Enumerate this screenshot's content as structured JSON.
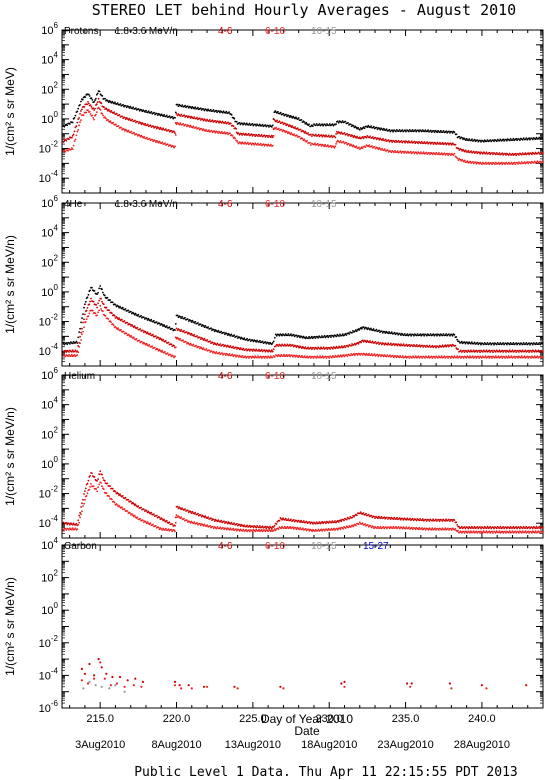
{
  "title": "STEREO LET behind Hourly Averages - August 2010",
  "footer": "Public Level 1 Data. Thu Apr 11 22:15:55 PDT 2013",
  "xlabel": "Day of Year 2010",
  "xlabel2": "Date",
  "xlim": [
    212.5,
    244.0
  ],
  "x_ticks": [
    215.0,
    220.0,
    225.0,
    230.0,
    235.0,
    240.0
  ],
  "x_tick_labels": [
    "215.0",
    "220.0",
    "225.0",
    "230.0",
    "235.0",
    "240.0"
  ],
  "date_labels": [
    {
      "day": 215,
      "label": "3Aug2010"
    },
    {
      "day": 220,
      "label": "8Aug2010"
    },
    {
      "day": 225,
      "label": "13Aug2010"
    },
    {
      "day": 230,
      "label": "18Aug2010"
    },
    {
      "day": 235,
      "label": "23Aug2010"
    },
    {
      "day": 240,
      "label": "28Aug2010"
    }
  ],
  "colors": {
    "1.8-3.6": "#000000",
    "4-6": "#cc0000",
    "6-10": "#ee2222",
    "10-15": "#999999",
    "15-27": "#0000cc"
  },
  "chart_data": [
    {
      "type": "scatter",
      "species": "Protons",
      "ylabel": "1/(cm² s sr MeV)",
      "yscale": "log",
      "ylim": [
        -5,
        6
      ],
      "y_ticks": [
        -4,
        -2,
        0,
        2,
        4,
        6
      ],
      "legend": [
        "1.8-3.6 MeV/n",
        "4-6",
        "6-10",
        "10-15"
      ],
      "series": [
        {
          "name": "1.8-3.6 MeV/n",
          "color": "#000000",
          "x": [
            212.6,
            213.2,
            213.8,
            214.2,
            214.6,
            214.9,
            215.2,
            215.5,
            216.5,
            218.0,
            219.9,
            220.0,
            220.5,
            222.0,
            223.5,
            223.9,
            224.0,
            226.3,
            226.4,
            227.0,
            228.0,
            228.8,
            229.0,
            230.4,
            230.5,
            231.0,
            232.0,
            232.5,
            234.0,
            236.0,
            238.2,
            238.4,
            239.0,
            240.0,
            242.0,
            244.0
          ],
          "y": [
            -0.5,
            -0.2,
            1.3,
            1.7,
            1.1,
            1.9,
            1.4,
            1.2,
            0.9,
            0.5,
            0.05,
            0.95,
            0.85,
            0.6,
            0.4,
            -0.2,
            -0.3,
            -0.5,
            0.5,
            0.3,
            0.0,
            -0.5,
            -0.4,
            -0.4,
            -0.2,
            -0.2,
            -0.7,
            -0.5,
            -0.8,
            -0.8,
            -0.9,
            -1.2,
            -1.4,
            -1.5,
            -1.4,
            -1.3
          ]
        },
        {
          "name": "4-6",
          "color": "#cc0000",
          "x": [
            212.6,
            213.2,
            213.8,
            214.2,
            214.6,
            214.9,
            215.2,
            215.5,
            216.5,
            218.0,
            219.9,
            220.0,
            220.5,
            222.0,
            223.5,
            223.9,
            224.0,
            226.3,
            226.4,
            227.0,
            228.0,
            228.8,
            229.0,
            230.4,
            230.5,
            231.0,
            232.0,
            232.5,
            234.0,
            236.0,
            238.2,
            238.4,
            239.0,
            240.0,
            242.0,
            244.0
          ],
          "y": [
            -1.5,
            -1.2,
            0.7,
            1.1,
            0.6,
            1.3,
            0.8,
            0.6,
            0.1,
            -0.4,
            -0.9,
            0.3,
            0.2,
            -0.1,
            -0.3,
            -0.7,
            -1.0,
            -1.2,
            -0.1,
            -0.3,
            -0.7,
            -1.1,
            -1.1,
            -1.2,
            -0.9,
            -1.0,
            -1.3,
            -1.2,
            -1.5,
            -1.6,
            -1.7,
            -2.0,
            -2.2,
            -2.3,
            -2.4,
            -2.3
          ]
        },
        {
          "name": "6-10",
          "color": "#ee2222",
          "x": [
            212.6,
            213.2,
            213.8,
            214.2,
            214.6,
            214.9,
            215.2,
            215.5,
            216.5,
            218.0,
            219.9,
            220.0,
            220.5,
            222.0,
            223.5,
            223.9,
            224.0,
            226.3,
            226.4,
            227.0,
            228.0,
            228.8,
            229.0,
            230.4,
            230.5,
            231.0,
            232.0,
            232.5,
            234.0,
            236.0,
            238.2,
            238.4,
            239.0,
            240.0,
            242.0,
            244.0
          ],
          "y": [
            -2.2,
            -2.0,
            0.2,
            0.6,
            0.0,
            0.8,
            0.2,
            -0.1,
            -0.7,
            -1.3,
            -1.9,
            -0.3,
            -0.4,
            -0.8,
            -1.0,
            -1.4,
            -1.6,
            -1.8,
            -0.6,
            -0.8,
            -1.2,
            -1.7,
            -1.7,
            -1.9,
            -1.5,
            -1.6,
            -2.0,
            -1.8,
            -2.2,
            -2.3,
            -2.4,
            -2.7,
            -2.9,
            -3.0,
            -3.0,
            -2.9
          ]
        }
      ]
    },
    {
      "type": "scatter",
      "species": "4He",
      "ylabel": "1/(cm² s sr MeV/n)",
      "yscale": "log",
      "ylim": [
        -5,
        6
      ],
      "y_ticks": [
        -4,
        -2,
        0,
        2,
        4,
        6
      ],
      "legend": [
        "1.8-3.6 MeV/n",
        "4-6",
        "6-10",
        "10-15"
      ],
      "series": [
        {
          "name": "1.8-3.6 MeV/n",
          "color": "#000000",
          "x": [
            212.6,
            213.5,
            214.0,
            214.4,
            214.8,
            215.0,
            215.3,
            216.0,
            217.5,
            219.0,
            219.9,
            220.0,
            220.8,
            222.5,
            224.5,
            226.3,
            226.5,
            227.5,
            228.5,
            230.0,
            231.0,
            231.8,
            232.2,
            233.5,
            235.0,
            237.0,
            238.2,
            238.5,
            240.0,
            242.0,
            244.0
          ],
          "y": [
            -3.5,
            -3.4,
            -0.8,
            0.3,
            -0.2,
            0.4,
            -0.3,
            -0.9,
            -1.6,
            -2.2,
            -2.6,
            -1.6,
            -1.9,
            -2.6,
            -3.2,
            -3.5,
            -2.9,
            -2.9,
            -3.1,
            -3.0,
            -2.9,
            -2.6,
            -2.4,
            -2.7,
            -2.9,
            -2.9,
            -2.9,
            -3.4,
            -3.5,
            -3.5,
            -3.5
          ]
        },
        {
          "name": "4-6",
          "color": "#cc0000",
          "x": [
            212.6,
            213.5,
            214.0,
            214.4,
            214.8,
            215.0,
            215.3,
            216.0,
            217.5,
            219.0,
            219.9,
            220.0,
            220.8,
            222.5,
            224.5,
            226.3,
            226.5,
            227.5,
            228.5,
            230.0,
            231.0,
            231.8,
            232.2,
            233.5,
            235.0,
            237.0,
            238.2,
            238.5,
            240.0,
            242.0,
            244.0
          ],
          "y": [
            -4.0,
            -4.0,
            -1.5,
            -0.5,
            -1.0,
            -0.4,
            -1.0,
            -1.7,
            -2.5,
            -3.2,
            -3.7,
            -2.5,
            -2.8,
            -3.5,
            -3.9,
            -4.0,
            -3.6,
            -3.6,
            -3.8,
            -3.8,
            -3.7,
            -3.5,
            -3.3,
            -3.5,
            -3.6,
            -3.7,
            -3.6,
            -4.0,
            -4.0,
            -4.0,
            -4.0
          ]
        },
        {
          "name": "6-10",
          "color": "#ee2222",
          "x": [
            212.6,
            213.5,
            214.0,
            214.4,
            214.8,
            215.0,
            215.3,
            216.0,
            217.5,
            219.0,
            219.9,
            220.0,
            220.8,
            222.5,
            224.5,
            226.3,
            226.5,
            227.5,
            228.5,
            230.0,
            231.0,
            231.8,
            232.2,
            233.5,
            235.0,
            237.0,
            238.2,
            238.5,
            240.0,
            242.0,
            244.0
          ],
          "y": [
            -4.3,
            -4.3,
            -2.1,
            -1.2,
            -1.6,
            -1.0,
            -1.6,
            -2.4,
            -3.3,
            -4.0,
            -4.4,
            -3.1,
            -3.5,
            -4.1,
            -4.4,
            -4.4,
            -4.3,
            -4.3,
            -4.4,
            -4.4,
            -4.3,
            -4.2,
            -4.2,
            -4.3,
            -4.4,
            -4.4,
            -4.4,
            -4.4,
            -4.4,
            -4.4,
            -4.4
          ]
        }
      ]
    },
    {
      "type": "scatter",
      "species": "Helium",
      "ylabel": "1/(cm² s sr MeV/n)",
      "yscale": "log",
      "ylim": [
        -5,
        6
      ],
      "y_ticks": [
        -4,
        -2,
        0,
        2,
        4,
        6
      ],
      "legend": [
        "4-6",
        "6-10",
        "10-15"
      ],
      "series": [
        {
          "name": "4-6",
          "color": "#cc0000",
          "x": [
            212.6,
            213.5,
            214.0,
            214.4,
            214.8,
            215.0,
            215.3,
            216.0,
            217.5,
            219.0,
            219.9,
            220.0,
            220.8,
            222.5,
            224.5,
            226.3,
            226.8,
            227.5,
            229.0,
            230.5,
            231.5,
            232.0,
            233.0,
            234.5,
            236.5,
            238.2,
            238.5,
            240.0,
            242.0,
            244.0
          ],
          "y": [
            -4.0,
            -4.1,
            -1.8,
            -0.6,
            -1.2,
            -0.5,
            -1.2,
            -1.9,
            -2.9,
            -3.7,
            -4.2,
            -2.9,
            -3.2,
            -3.8,
            -4.2,
            -4.3,
            -3.7,
            -3.8,
            -4.0,
            -3.9,
            -3.6,
            -3.3,
            -3.6,
            -3.7,
            -3.8,
            -3.8,
            -4.3,
            -4.3,
            -4.3,
            -4.3
          ]
        },
        {
          "name": "6-10",
          "color": "#ee2222",
          "x": [
            212.6,
            213.5,
            214.0,
            214.4,
            214.8,
            215.0,
            215.3,
            216.0,
            217.5,
            219.0,
            219.9,
            220.0,
            220.8,
            222.5,
            224.5,
            226.3,
            226.8,
            227.5,
            229.0,
            230.5,
            231.5,
            232.0,
            233.0,
            234.5,
            236.5,
            238.2,
            238.5,
            240.0,
            242.0,
            244.0
          ],
          "y": [
            -4.4,
            -4.4,
            -2.4,
            -1.4,
            -1.8,
            -1.2,
            -1.9,
            -2.7,
            -3.7,
            -4.4,
            -4.5,
            -3.5,
            -3.9,
            -4.3,
            -4.5,
            -4.5,
            -4.3,
            -4.3,
            -4.5,
            -4.4,
            -4.2,
            -4.0,
            -4.3,
            -4.3,
            -4.4,
            -4.4,
            -4.6,
            -4.6,
            -4.6,
            -4.6
          ]
        }
      ]
    },
    {
      "type": "scatter",
      "species": "Carbon",
      "ylabel": "1/(cm² s sr MeV/n)",
      "yscale": "log",
      "ylim": [
        -6,
        4
      ],
      "y_ticks": [
        -6,
        -4,
        -2,
        0,
        2,
        4
      ],
      "legend": [
        "4-6",
        "6-10",
        "10-15",
        "15-27"
      ],
      "series": [
        {
          "name": "4-6",
          "color": "#cc0000",
          "x": [
            213.8,
            214.0,
            214.3,
            214.6,
            214.9,
            215.1,
            215.4,
            215.8,
            216.3,
            216.8,
            217.3,
            217.8,
            219.9,
            220.2,
            220.8,
            221.8,
            223.8,
            226.8,
            230.8,
            231.0,
            235.1,
            235.4,
            237.9,
            240.0,
            242.9
          ],
          "y": [
            -3.6,
            -3.9,
            -3.3,
            -4.0,
            -3.0,
            -3.5,
            -3.9,
            -4.1,
            -4.1,
            -4.3,
            -4.2,
            -4.4,
            -4.4,
            -4.6,
            -4.6,
            -4.7,
            -4.7,
            -4.7,
            -4.5,
            -4.4,
            -4.5,
            -4.5,
            -4.5,
            -4.6,
            -4.6
          ]
        },
        {
          "name": "6-10",
          "color": "#ee2222",
          "x": [
            213.8,
            214.2,
            214.6,
            215.0,
            215.3,
            215.7,
            216.1,
            216.6,
            217.2,
            217.7,
            219.9,
            220.3,
            221.0,
            222.0,
            224.0,
            227.0,
            231.0,
            235.3,
            238.0,
            240.3
          ],
          "y": [
            -4.3,
            -4.5,
            -4.2,
            -3.2,
            -4.2,
            -4.6,
            -4.5,
            -4.7,
            -4.6,
            -4.7,
            -4.6,
            -4.8,
            -4.8,
            -4.7,
            -4.8,
            -4.8,
            -4.7,
            -4.7,
            -4.8,
            -4.8
          ]
        },
        {
          "name": "10-15",
          "color": "#999999",
          "x": [
            213.9,
            214.3,
            214.7,
            215.1,
            215.6,
            216.0,
            216.6
          ],
          "y": [
            -4.8,
            -4.4,
            -4.6,
            -4.7,
            -4.8,
            -4.6,
            -5.0
          ]
        }
      ]
    }
  ]
}
